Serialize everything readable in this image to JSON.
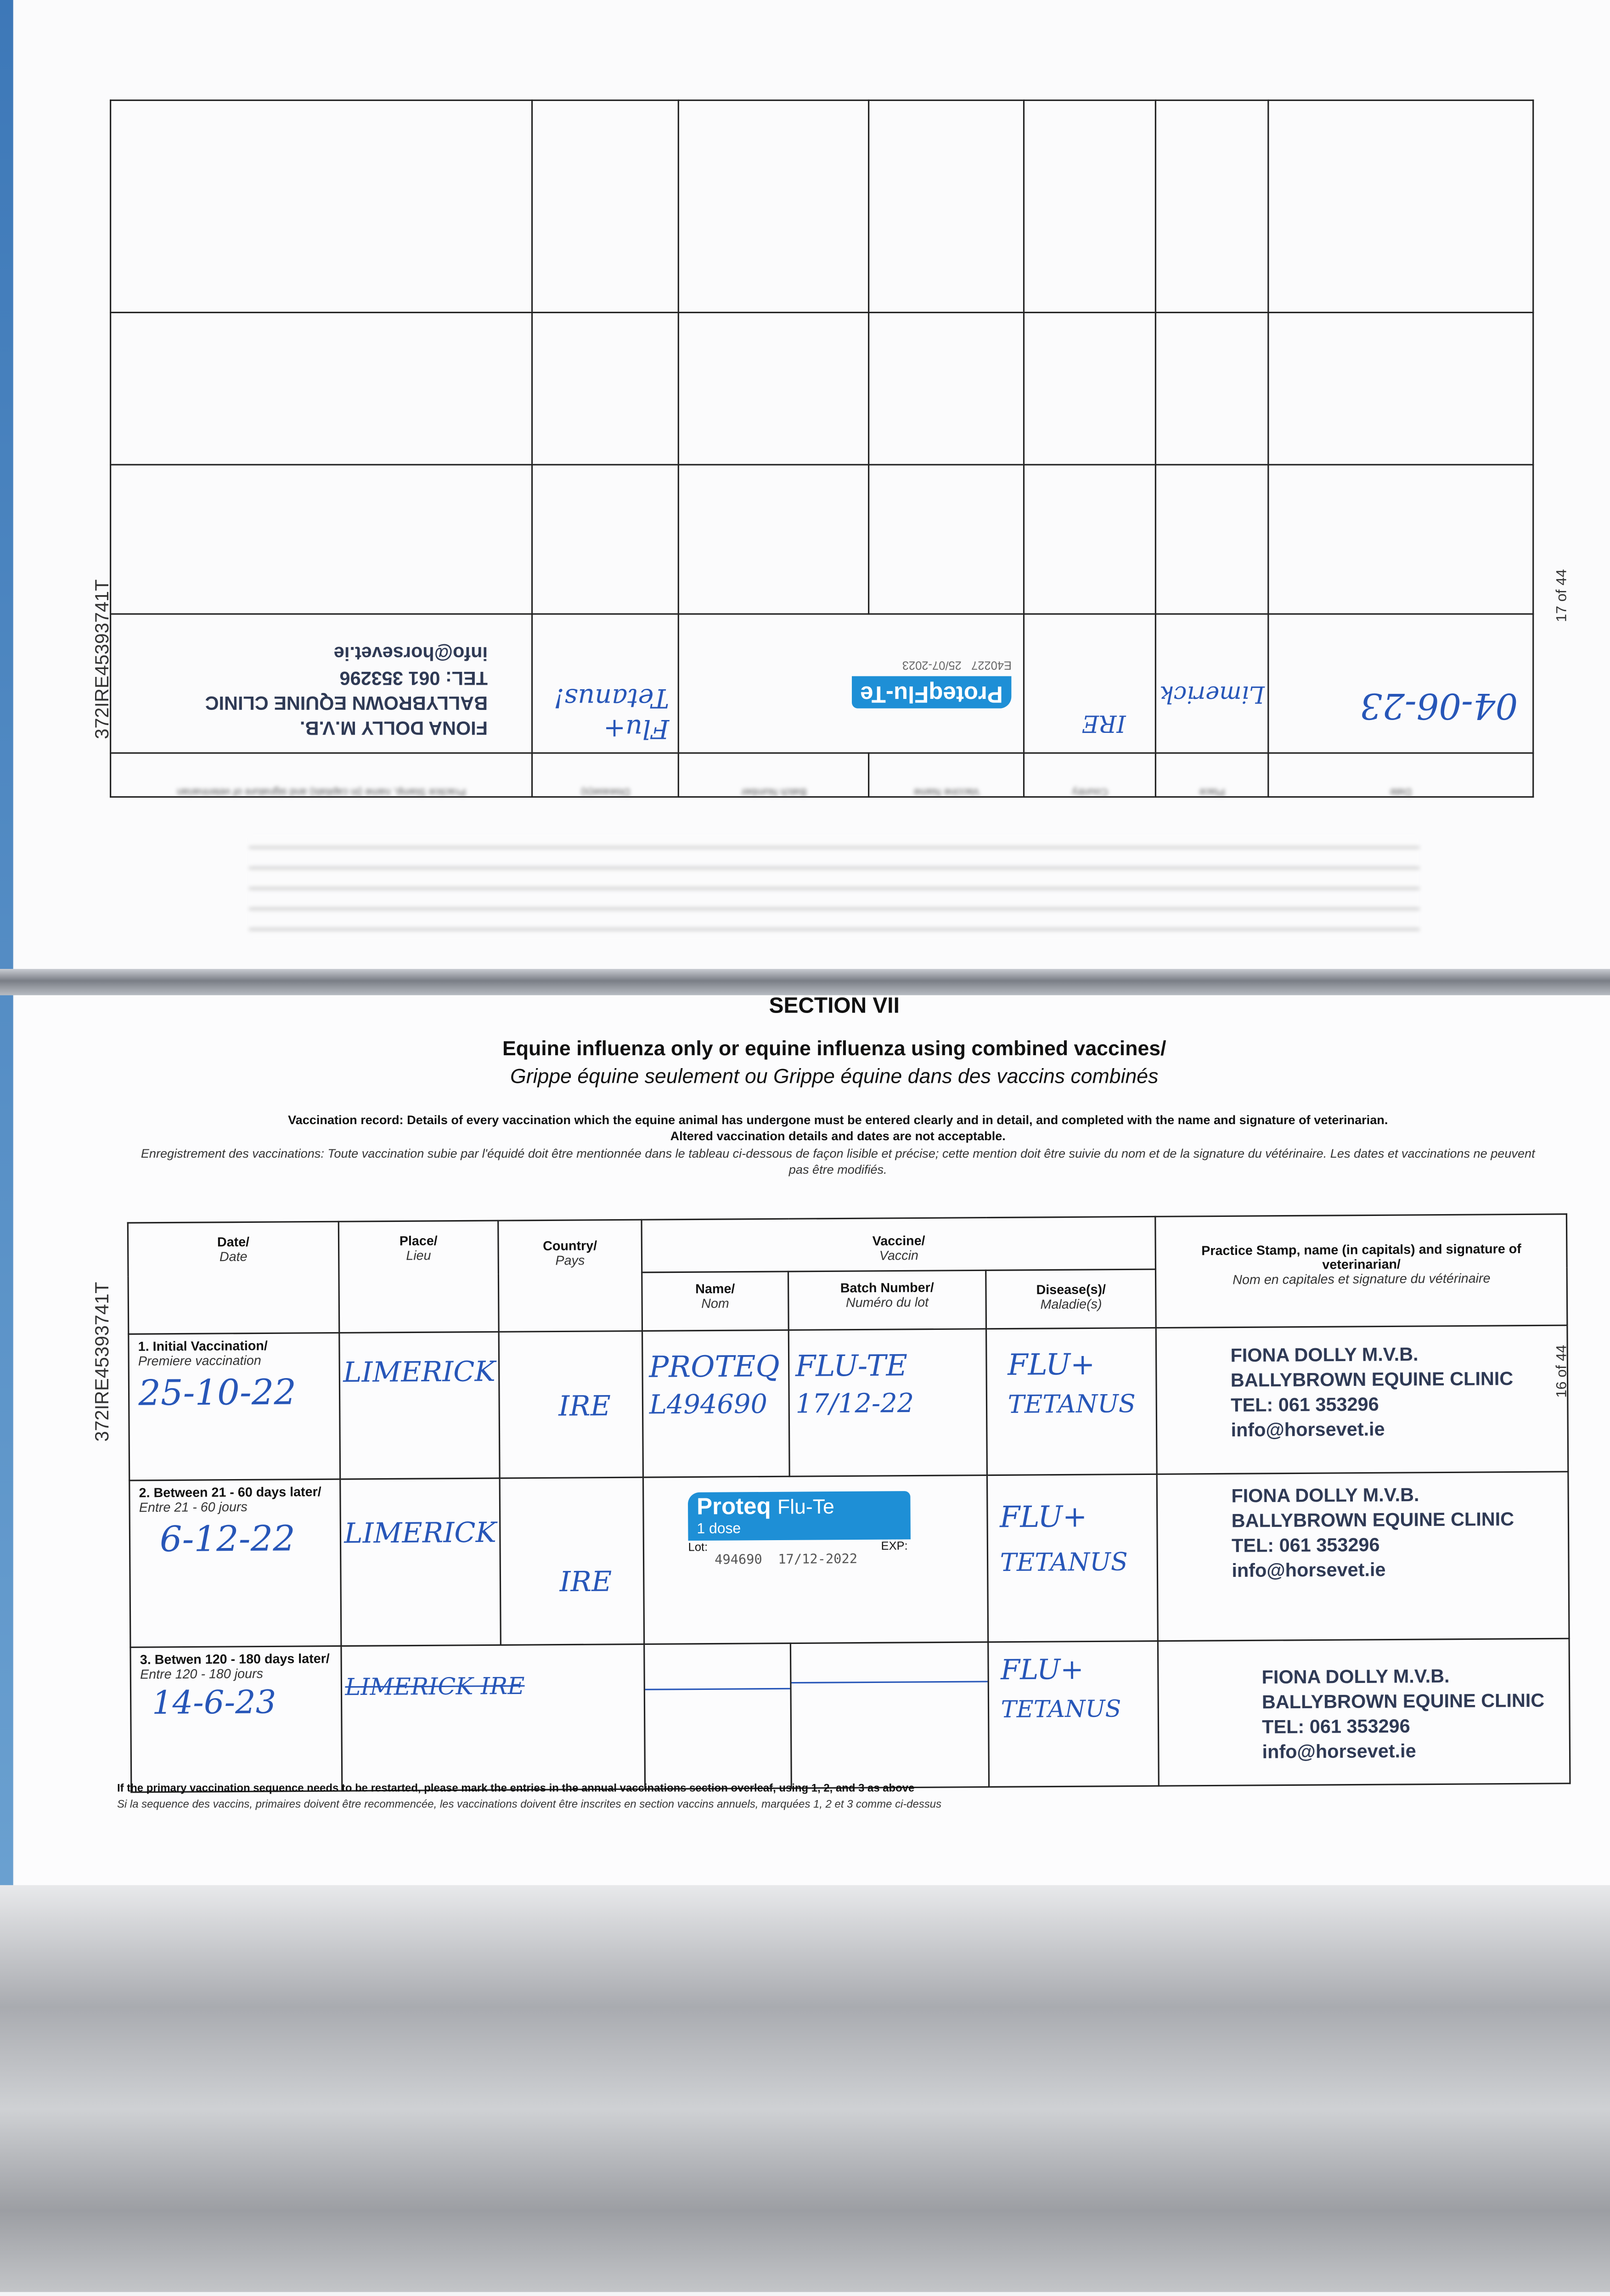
{
  "top_page": {
    "page_number": "17 of 44",
    "side_id": "372IRE45393741T",
    "entry": {
      "date": "04-06-23",
      "place": "Limerick",
      "country": "IRE",
      "sticker": {
        "brand": "ProteqFlu-Te",
        "lot": "E40227",
        "exp": "25/07-2023"
      },
      "disease": [
        "Flu+",
        "Tetanus!"
      ],
      "stamp": [
        "FIONA DOLLY M.V.B.",
        "BALLYBROWN EQUINE CLINIC",
        "TEL: 061 353296",
        "info@horsevet.ie"
      ]
    },
    "headers": [
      "Date",
      "Place",
      "Country",
      "Vaccine",
      "Name",
      "Batch Number",
      "Disease(s)",
      "Practice Stamp, name (in capitals) and signature of veterinarian"
    ]
  },
  "bottom_page": {
    "page_number": "16 of 44",
    "side_id": "372IRE45393741T",
    "section": "SECTION VII",
    "title": "Equine influenza only or equine influenza using combined vaccines/",
    "title_fr": "Grippe équine seulement ou Grippe équine dans des vaccins combinés",
    "note_en": "Vaccination record: Details of every vaccination which the equine animal has undergone must be entered clearly and in detail, and completed with the name and signature of veterinarian.",
    "note_en_2": "Altered vaccination details and dates are not acceptable.",
    "note_fr": "Enregistrement des vaccinations: Toute vaccination subie par l'équidé doit être mentionnée dans le tableau ci-dessous de façon lisible et précise; cette mention doit être suivie du nom et de la signature du vétérinaire. Les dates et vaccinations ne peuvent pas être modifiés.",
    "headers": {
      "date": "Date/",
      "date_fr": "Date",
      "place": "Place/",
      "place_fr": "Lieu",
      "country": "Country/",
      "country_fr": "Pays",
      "vaccine": "Vaccine/",
      "vaccine_fr": "Vaccin",
      "name": "Name/",
      "name_fr": "Nom",
      "batch": "Batch Number/",
      "batch_fr": "Numéro du lot",
      "disease": "Disease(s)/",
      "disease_fr": "Maladie(s)",
      "stamp": "Practice Stamp, name (in capitals) and signature of veterinarian/",
      "stamp_fr": "Nom en capitales et signature du vétérinaire"
    },
    "rows": [
      {
        "label": "1. Initial Vaccination/",
        "label_fr": "Premiere vaccination",
        "date": "25-10-22",
        "place": "LIMERICK",
        "country": "IRE",
        "name": "PROTEQ",
        "name2": "L494690",
        "batch": "FLU-TE",
        "batch2": "17/12-22",
        "disease": "FLU+",
        "disease2": "TETANUS",
        "stamp": [
          "FIONA DOLLY M.V.B.",
          "BALLYBROWN EQUINE CLINIC",
          "TEL: 061 353296",
          "info@horsevet.ie"
        ]
      },
      {
        "label": "2. Between 21 - 60 days later/",
        "label_fr": "Entre 21 - 60 jours",
        "date": "6-12-22",
        "place": "LIMERICK",
        "country": "IRE",
        "sticker": {
          "brand_bold": "Proteq",
          "brand": "Flu-Te",
          "dose": "1 dose",
          "lot_label": "Lot:",
          "exp_label": "EXP:",
          "lot": "494690",
          "exp": "17/12-2022"
        },
        "disease": "FLU+",
        "disease2": "TETANUS",
        "stamp": [
          "FIONA DOLLY M.V.B.",
          "BALLYBROWN EQUINE CLINIC",
          "TEL: 061 353296",
          "info@horsevet.ie"
        ]
      },
      {
        "label": "3. Betwen 120 - 180 days later/",
        "label_fr": "Entre 120 - 180 jours",
        "date": "14-6-23",
        "place": "LIMERICK IRE",
        "disease": "FLU+",
        "disease2": "TETANUS",
        "stamp": [
          "FIONA DOLLY M.V.B.",
          "BALLYBROWN EQUINE CLINIC",
          "TEL: 061 353296",
          "info@horsevet.ie"
        ]
      }
    ],
    "footnote": "If the primary vaccination sequence needs to be restarted, please mark the entries in the annual vaccinations section overleaf, using 1, 2, and 3 as above",
    "footnote_fr": "Si la sequence des vaccins, primaires doivent être recommencée, les vaccinations doivent être inscrites en section vaccins annuels, marquées 1, 2 et 3 comme ci-dessus"
  },
  "colors": {
    "ink": "#2756b8",
    "sticker": "#1e8fd6",
    "stamp": "#2f3a55"
  }
}
